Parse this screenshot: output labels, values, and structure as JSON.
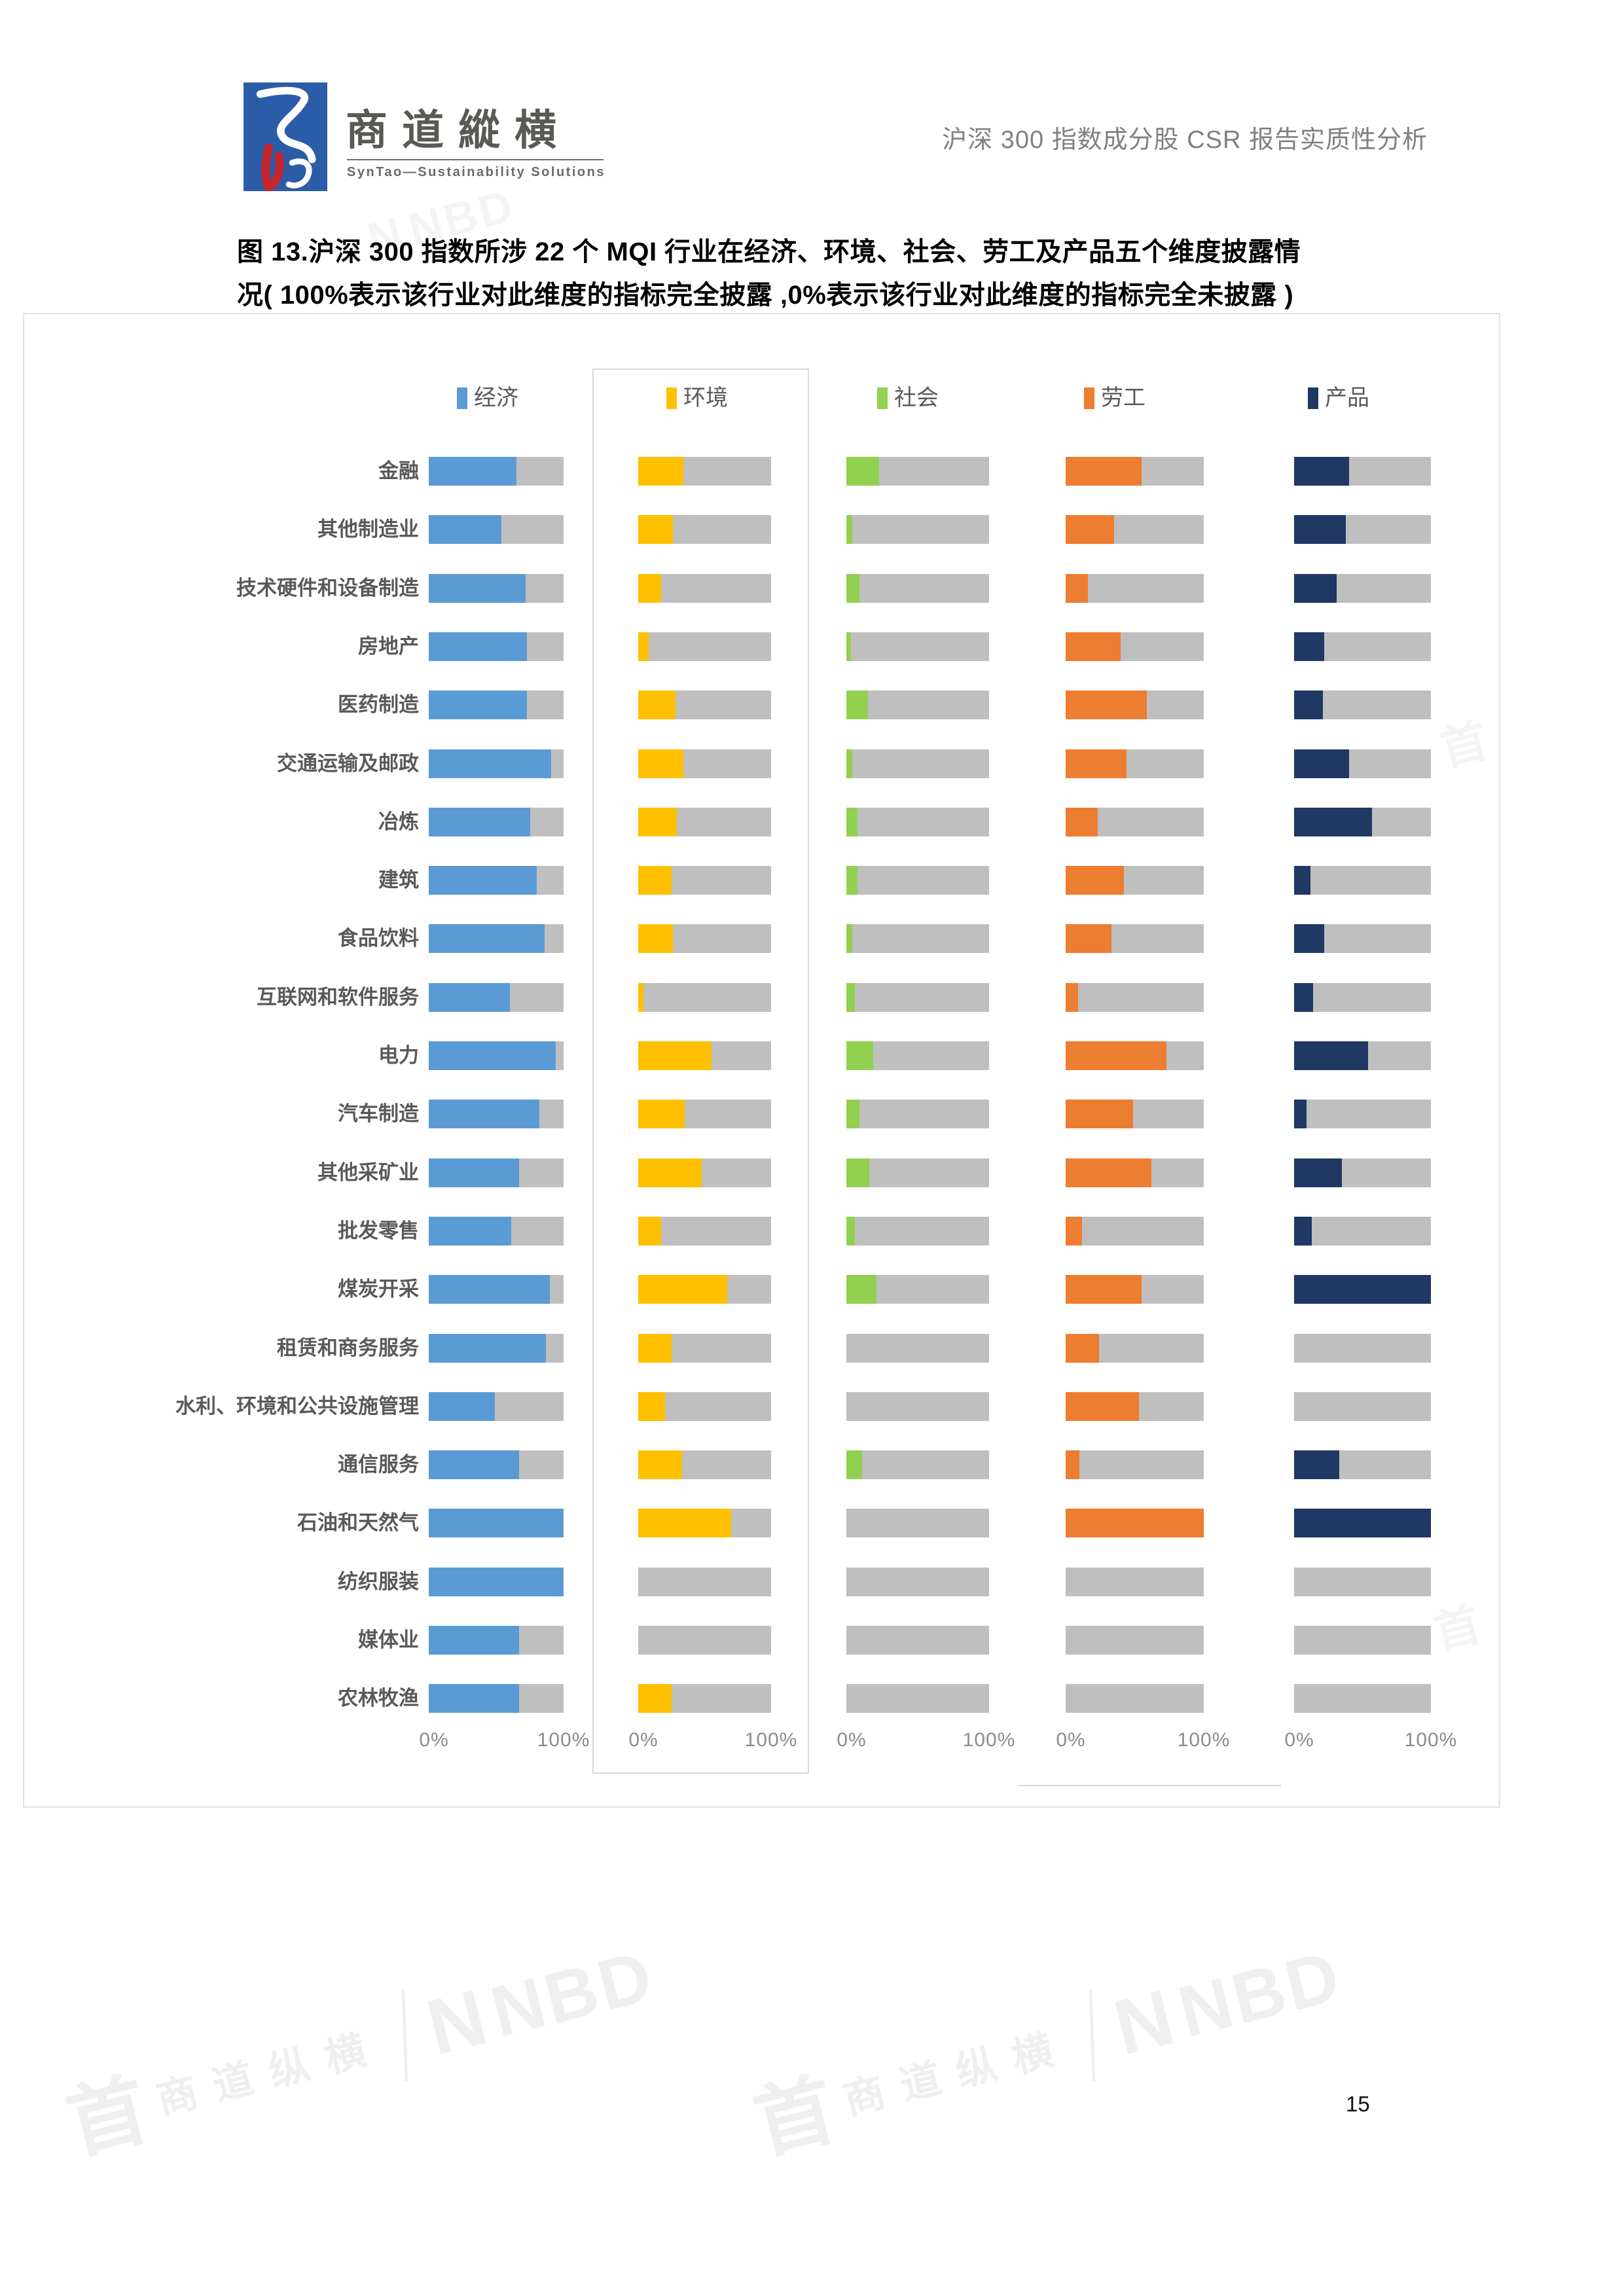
{
  "header": {
    "brand_cn": "商道縱横",
    "brand_en": "SynTao—Sustainability Solutions",
    "doc_title": "沪深 300 指数成分股 CSR 报告实质性分析"
  },
  "figure_title_line1": "图 13.沪深 300 指数所涉 22 个 MQI 行业在经济、环境、社会、劳工及产品五个维度披露情",
  "figure_title_line2": "况( 100%表示该行业对此维度的指标完全披露 ,0%表示该行业对此维度的指标完全未披露 )",
  "chart_data": {
    "type": "bar",
    "orientation": "horizontal",
    "title": "22 个 MQI 行业五个维度披露情况",
    "xlabel": "",
    "ylabel": "",
    "xlim": [
      0,
      100
    ],
    "axis_min_label": "0%",
    "axis_max_label": "100%",
    "grid": false,
    "legend_position": "top",
    "track_color": "#bfbfbf",
    "categories": [
      "金融",
      "其他制造业",
      "技术硬件和设备制造",
      "房地产",
      "医药制造",
      "交通运输及邮政",
      "冶炼",
      "建筑",
      "食品饮料",
      "互联网和软件服务",
      "电力",
      "汽车制造",
      "其他采矿业",
      "批发零售",
      "煤炭开采",
      "租赁和商务服务",
      "水利、环境和公共设施管理",
      "通信服务",
      "石油和天然气",
      "纺织服装",
      "媒体业",
      "农林牧渔"
    ],
    "series": [
      {
        "name": "经济",
        "color": "#5b9bd5",
        "values": [
          65,
          54,
          72,
          73,
          73,
          91,
          75,
          80,
          86,
          60,
          94,
          82,
          67,
          61,
          90,
          87,
          49,
          67,
          100,
          100,
          67,
          67
        ]
      },
      {
        "name": "环境",
        "color": "#ffc000",
        "values": [
          34,
          26,
          17,
          8,
          28,
          34,
          29,
          25,
          26,
          4,
          55,
          35,
          48,
          17,
          67,
          25,
          20,
          33,
          70,
          0,
          0,
          25
        ]
      },
      {
        "name": "社会",
        "color": "#92d050",
        "values": [
          23,
          4,
          9,
          3,
          15,
          4,
          8,
          8,
          4,
          6,
          19,
          9,
          16,
          6,
          21,
          0,
          0,
          11,
          0,
          0,
          0,
          0
        ]
      },
      {
        "name": "劳工",
        "color": "#ed7d31",
        "values": [
          55,
          35,
          16,
          40,
          59,
          44,
          23,
          42,
          33,
          9,
          73,
          49,
          62,
          12,
          55,
          24,
          53,
          10,
          100,
          0,
          0,
          0
        ]
      },
      {
        "name": "产品",
        "color": "#1f3864",
        "values": [
          40,
          38,
          31,
          22,
          21,
          40,
          57,
          12,
          22,
          14,
          54,
          9,
          35,
          13,
          100,
          0,
          0,
          33,
          100,
          0,
          0,
          0
        ]
      }
    ]
  },
  "watermarks": {
    "brand": "商道纵横",
    "seal": "首",
    "nbd": "NBD",
    "nblock": "N"
  },
  "page_number": "15"
}
